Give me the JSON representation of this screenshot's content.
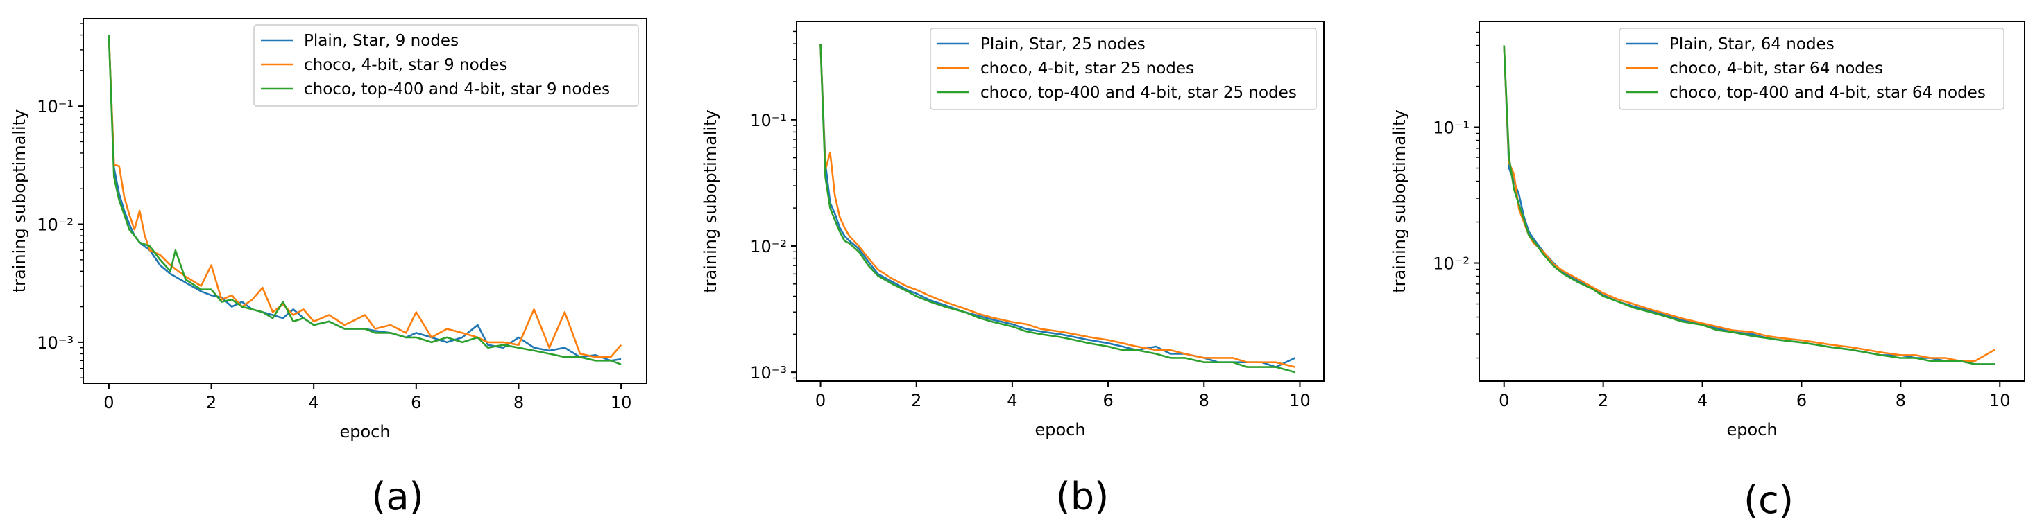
{
  "colors": {
    "plain": "#1f77b4",
    "choco4bit": "#ff7f0e",
    "chocoTop": "#2ca02c",
    "axis": "#000000"
  },
  "chart_data": [
    {
      "type": "line",
      "caption": "(a)",
      "xlabel": "epoch",
      "ylabel": "training suboptimality",
      "xlim": [
        -0.5,
        10.5
      ],
      "yscale": "log",
      "ylim": [
        0.00045,
        0.55
      ],
      "xticks": [
        0,
        2,
        4,
        6,
        8,
        10
      ],
      "xtick_labels": [
        "0",
        "2",
        "4",
        "6",
        "8",
        "10"
      ],
      "yticks": [
        0.001,
        0.01,
        0.1
      ],
      "ytick_labels": [
        "10⁻³",
        "10⁻²",
        "10⁻¹"
      ],
      "legend_position": "top-right",
      "series": [
        {
          "name": "Plain, Star, 9 nodes",
          "color_key": "plain",
          "x": [
            0,
            0.1,
            0.2,
            0.3,
            0.4,
            0.5,
            0.6,
            0.8,
            1.0,
            1.2,
            1.5,
            1.8,
            2.0,
            2.2,
            2.4,
            2.6,
            2.8,
            3.0,
            3.2,
            3.4,
            3.6,
            3.8,
            4.0,
            4.3,
            4.6,
            5.0,
            5.2,
            5.5,
            5.8,
            6.0,
            6.3,
            6.6,
            6.9,
            7.2,
            7.4,
            7.7,
            8.0,
            8.3,
            8.6,
            8.9,
            9.2,
            9.5,
            9.8,
            10.0
          ],
          "y": [
            0.4,
            0.03,
            0.018,
            0.013,
            0.01,
            0.008,
            0.007,
            0.006,
            0.0045,
            0.0038,
            0.0032,
            0.0027,
            0.0025,
            0.0024,
            0.002,
            0.0022,
            0.0019,
            0.0018,
            0.0017,
            0.0016,
            0.0019,
            0.0016,
            0.0014,
            0.0015,
            0.0013,
            0.0013,
            0.00125,
            0.0012,
            0.0011,
            0.0012,
            0.0011,
            0.001,
            0.0011,
            0.0014,
            0.00095,
            0.0009,
            0.0011,
            0.0009,
            0.00085,
            0.0009,
            0.00075,
            0.00078,
            0.0007,
            0.00072
          ]
        },
        {
          "name": "choco, 4-bit, star 9 nodes",
          "color_key": "choco4bit",
          "x": [
            0,
            0.1,
            0.2,
            0.3,
            0.4,
            0.5,
            0.6,
            0.7,
            0.8,
            1.0,
            1.2,
            1.5,
            1.8,
            2.0,
            2.2,
            2.4,
            2.6,
            2.8,
            3.0,
            3.2,
            3.4,
            3.6,
            3.8,
            4.0,
            4.3,
            4.6,
            5.0,
            5.2,
            5.5,
            5.8,
            6.0,
            6.3,
            6.6,
            6.9,
            7.2,
            7.4,
            7.7,
            8.0,
            8.3,
            8.6,
            8.9,
            9.2,
            9.5,
            9.8,
            10.0
          ],
          "y": [
            0.4,
            0.032,
            0.031,
            0.017,
            0.012,
            0.009,
            0.013,
            0.008,
            0.006,
            0.0055,
            0.0045,
            0.0036,
            0.003,
            0.0045,
            0.0023,
            0.0025,
            0.002,
            0.0023,
            0.0029,
            0.0018,
            0.0021,
            0.0017,
            0.0019,
            0.0015,
            0.0017,
            0.0014,
            0.0017,
            0.0013,
            0.0014,
            0.0012,
            0.0018,
            0.0011,
            0.0013,
            0.0012,
            0.0011,
            0.001,
            0.001,
            0.00095,
            0.0019,
            0.0009,
            0.0018,
            0.0008,
            0.00075,
            0.00075,
            0.00095
          ]
        },
        {
          "name": "choco, top-400 and 4-bit, star 9 nodes",
          "color_key": "chocoTop",
          "x": [
            0,
            0.1,
            0.2,
            0.3,
            0.4,
            0.5,
            0.6,
            0.8,
            1.0,
            1.2,
            1.3,
            1.5,
            1.8,
            2.0,
            2.2,
            2.4,
            2.6,
            2.8,
            3.0,
            3.2,
            3.4,
            3.6,
            3.8,
            4.0,
            4.3,
            4.6,
            5.0,
            5.2,
            5.5,
            5.8,
            6.0,
            6.3,
            6.6,
            6.9,
            7.2,
            7.4,
            7.7,
            8.0,
            8.3,
            8.6,
            8.9,
            9.2,
            9.5,
            9.8,
            10.0
          ],
          "y": [
            0.4,
            0.025,
            0.016,
            0.012,
            0.009,
            0.008,
            0.007,
            0.0065,
            0.005,
            0.004,
            0.006,
            0.0034,
            0.0028,
            0.0028,
            0.0022,
            0.0023,
            0.002,
            0.0019,
            0.0018,
            0.0016,
            0.0022,
            0.0015,
            0.0016,
            0.0014,
            0.0015,
            0.0013,
            0.0013,
            0.0012,
            0.0012,
            0.0011,
            0.0011,
            0.001,
            0.0011,
            0.001,
            0.0011,
            0.0009,
            0.00095,
            0.0009,
            0.00085,
            0.0008,
            0.00075,
            0.00075,
            0.0007,
            0.0007,
            0.00065
          ]
        }
      ]
    },
    {
      "type": "line",
      "caption": "(b)",
      "xlabel": "epoch",
      "ylabel": "training suboptimality",
      "xlim": [
        -0.5,
        10.5
      ],
      "yscale": "log",
      "ylim": [
        0.00085,
        0.6
      ],
      "xticks": [
        0,
        2,
        4,
        6,
        8,
        10
      ],
      "xtick_labels": [
        "0",
        "2",
        "4",
        "6",
        "8",
        "10"
      ],
      "yticks": [
        0.001,
        0.01,
        0.1
      ],
      "ytick_labels": [
        "10⁻³",
        "10⁻²",
        "10⁻¹"
      ],
      "legend_position": "top-right",
      "series": [
        {
          "name": "Plain, Star, 25 nodes",
          "color_key": "plain",
          "x": [
            0,
            0.1,
            0.2,
            0.3,
            0.4,
            0.5,
            0.6,
            0.8,
            1.0,
            1.2,
            1.5,
            1.8,
            2.0,
            2.3,
            2.6,
            3.0,
            3.3,
            3.6,
            4.0,
            4.3,
            4.6,
            5.0,
            5.3,
            5.6,
            6.0,
            6.3,
            6.6,
            7.0,
            7.3,
            7.6,
            8.0,
            8.3,
            8.6,
            8.9,
            9.2,
            9.5,
            9.9
          ],
          "y": [
            0.4,
            0.045,
            0.022,
            0.018,
            0.014,
            0.012,
            0.011,
            0.0095,
            0.0075,
            0.006,
            0.0052,
            0.0045,
            0.0042,
            0.0037,
            0.0034,
            0.003,
            0.0028,
            0.0026,
            0.0024,
            0.0022,
            0.0021,
            0.002,
            0.0019,
            0.0018,
            0.0017,
            0.0016,
            0.0015,
            0.0016,
            0.0014,
            0.0014,
            0.0013,
            0.0012,
            0.0012,
            0.0012,
            0.0012,
            0.0011,
            0.0013
          ]
        },
        {
          "name": "choco, 4-bit, star 25 nodes",
          "color_key": "choco4bit",
          "x": [
            0,
            0.1,
            0.2,
            0.3,
            0.4,
            0.5,
            0.6,
            0.8,
            1.0,
            1.2,
            1.5,
            1.8,
            2.0,
            2.3,
            2.6,
            3.0,
            3.3,
            3.6,
            4.0,
            4.3,
            4.6,
            5.0,
            5.3,
            5.6,
            6.0,
            6.3,
            6.6,
            7.0,
            7.3,
            7.6,
            8.0,
            8.3,
            8.6,
            8.9,
            9.2,
            9.5,
            9.9
          ],
          "y": [
            0.4,
            0.04,
            0.055,
            0.025,
            0.017,
            0.014,
            0.012,
            0.01,
            0.008,
            0.0065,
            0.0055,
            0.0048,
            0.0045,
            0.004,
            0.0036,
            0.0032,
            0.0029,
            0.0027,
            0.0025,
            0.0024,
            0.0022,
            0.0021,
            0.002,
            0.0019,
            0.0018,
            0.0017,
            0.0016,
            0.0015,
            0.0015,
            0.0014,
            0.0013,
            0.0013,
            0.0013,
            0.0012,
            0.0012,
            0.0012,
            0.0011
          ]
        },
        {
          "name": "choco, top-400 and 4-bit, star 25 nodes",
          "color_key": "chocoTop",
          "x": [
            0,
            0.1,
            0.2,
            0.3,
            0.4,
            0.5,
            0.6,
            0.8,
            1.0,
            1.2,
            1.5,
            1.8,
            2.0,
            2.3,
            2.6,
            3.0,
            3.3,
            3.6,
            4.0,
            4.3,
            4.6,
            5.0,
            5.3,
            5.6,
            6.0,
            6.3,
            6.6,
            7.0,
            7.3,
            7.6,
            8.0,
            8.3,
            8.6,
            8.9,
            9.2,
            9.5,
            9.9
          ],
          "y": [
            0.4,
            0.035,
            0.02,
            0.016,
            0.013,
            0.011,
            0.0105,
            0.009,
            0.007,
            0.0058,
            0.005,
            0.0044,
            0.004,
            0.0036,
            0.0033,
            0.003,
            0.0027,
            0.0025,
            0.0023,
            0.0021,
            0.002,
            0.0019,
            0.0018,
            0.0017,
            0.0016,
            0.0015,
            0.0015,
            0.0014,
            0.0013,
            0.0013,
            0.0012,
            0.0012,
            0.0012,
            0.0011,
            0.0011,
            0.0011,
            0.001
          ]
        }
      ]
    },
    {
      "type": "line",
      "caption": "(c)",
      "xlabel": "epoch",
      "ylabel": "training suboptimality",
      "xlim": [
        -0.5,
        10.5
      ],
      "yscale": "log",
      "ylim": [
        0.00135,
        0.6
      ],
      "xticks": [
        0,
        2,
        4,
        6,
        8,
        10
      ],
      "xtick_labels": [
        "0",
        "2",
        "4",
        "6",
        "8",
        "10"
      ],
      "yticks": [
        0.01,
        0.1
      ],
      "ytick_labels": [
        "10⁻²",
        "10⁻¹"
      ],
      "legend_position": "top-right",
      "series": [
        {
          "name": "Plain, Star, 64 nodes",
          "color_key": "plain",
          "x": [
            0,
            0.1,
            0.2,
            0.3,
            0.4,
            0.5,
            0.6,
            0.8,
            1.0,
            1.2,
            1.5,
            1.8,
            2.0,
            2.3,
            2.6,
            3.0,
            3.3,
            3.6,
            4.0,
            4.3,
            4.6,
            5.0,
            5.3,
            5.6,
            6.0,
            6.3,
            6.6,
            7.0,
            7.3,
            7.6,
            8.0,
            8.3,
            8.6,
            8.9,
            9.2,
            9.5,
            9.9
          ],
          "y": [
            0.4,
            0.05,
            0.04,
            0.032,
            0.022,
            0.017,
            0.015,
            0.012,
            0.01,
            0.0085,
            0.0074,
            0.0065,
            0.0058,
            0.0052,
            0.0048,
            0.0044,
            0.0041,
            0.0038,
            0.0035,
            0.0033,
            0.0031,
            0.003,
            0.0028,
            0.0027,
            0.0026,
            0.0025,
            0.0024,
            0.0023,
            0.0022,
            0.0021,
            0.0021,
            0.002,
            0.002,
            0.0019,
            0.0019,
            0.0018,
            0.0018
          ]
        },
        {
          "name": "choco, 4-bit, star 64 nodes",
          "color_key": "choco4bit",
          "x": [
            0,
            0.1,
            0.2,
            0.3,
            0.4,
            0.5,
            0.6,
            0.8,
            1.0,
            1.2,
            1.5,
            1.8,
            2.0,
            2.3,
            2.6,
            3.0,
            3.3,
            3.6,
            4.0,
            4.3,
            4.6,
            5.0,
            5.3,
            5.6,
            6.0,
            6.3,
            6.6,
            7.0,
            7.3,
            7.6,
            8.0,
            8.3,
            8.6,
            8.9,
            9.2,
            9.5,
            9.9
          ],
          "y": [
            0.4,
            0.055,
            0.045,
            0.025,
            0.02,
            0.016,
            0.014,
            0.012,
            0.0098,
            0.0087,
            0.0076,
            0.0066,
            0.006,
            0.0054,
            0.005,
            0.0045,
            0.0042,
            0.0039,
            0.0036,
            0.0034,
            0.0032,
            0.0031,
            0.0029,
            0.0028,
            0.0027,
            0.0026,
            0.0025,
            0.0024,
            0.0023,
            0.0022,
            0.0021,
            0.0021,
            0.002,
            0.002,
            0.0019,
            0.0019,
            0.0023
          ]
        },
        {
          "name": "choco, top-400 and 4-bit, star 64 nodes",
          "color_key": "chocoTop",
          "x": [
            0,
            0.1,
            0.2,
            0.3,
            0.4,
            0.5,
            0.6,
            0.8,
            1.0,
            1.2,
            1.5,
            1.8,
            2.0,
            2.3,
            2.6,
            3.0,
            3.3,
            3.6,
            4.0,
            4.3,
            4.6,
            5.0,
            5.3,
            5.6,
            6.0,
            6.3,
            6.6,
            7.0,
            7.3,
            7.6,
            8.0,
            8.3,
            8.6,
            8.9,
            9.2,
            9.5,
            9.9
          ],
          "y": [
            0.4,
            0.06,
            0.035,
            0.027,
            0.021,
            0.016,
            0.0145,
            0.0115,
            0.0095,
            0.0083,
            0.0072,
            0.0064,
            0.0057,
            0.0052,
            0.0047,
            0.0043,
            0.004,
            0.0037,
            0.0035,
            0.0032,
            0.0031,
            0.0029,
            0.0028,
            0.0027,
            0.0026,
            0.0025,
            0.0024,
            0.0023,
            0.0022,
            0.0021,
            0.002,
            0.002,
            0.0019,
            0.0019,
            0.0019,
            0.0018,
            0.0018
          ]
        }
      ]
    }
  ]
}
